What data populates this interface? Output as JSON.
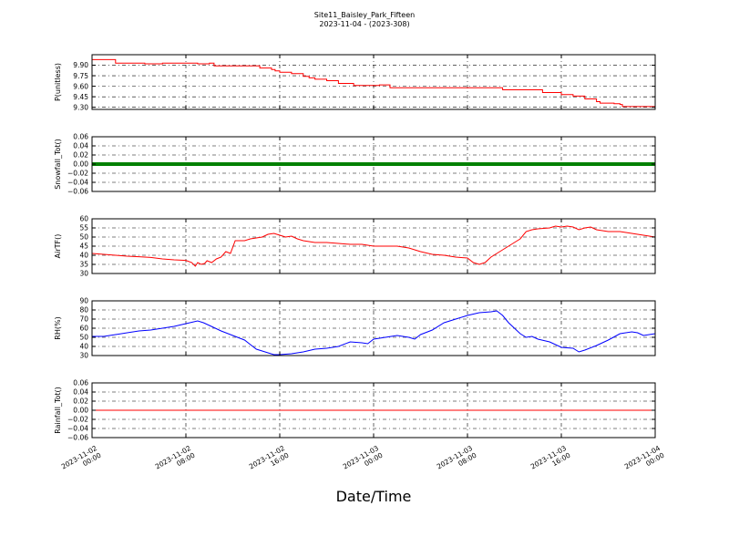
{
  "chart_data": {
    "type": "line",
    "title": "Site11_Baisley_Park_Fifteen",
    "subtitle": "2023-11-04 - (2023-308)",
    "xlabel": "Date/Time",
    "x_ticks": [
      {
        "t": 0,
        "line1": "2023-11-02",
        "line2": "00:00"
      },
      {
        "t": 8,
        "line1": "2023-11-02",
        "line2": "08:00"
      },
      {
        "t": 16,
        "line1": "2023-11-02",
        "line2": "16:00"
      },
      {
        "t": 24,
        "line1": "2023-11-03",
        "line2": "00:00"
      },
      {
        "t": 32,
        "line1": "2023-11-03",
        "line2": "08:00"
      },
      {
        "t": 40,
        "line1": "2023-11-03",
        "line2": "16:00"
      },
      {
        "t": 48,
        "line1": "2023-11-04",
        "line2": "00:00"
      }
    ],
    "xlim": [
      0,
      48
    ],
    "panels": [
      {
        "ylabel": "P(unitless)",
        "ylim": [
          9.27,
          10.05
        ],
        "yticks": [
          "9.30",
          "9.45",
          "9.60",
          "9.75",
          "9.90"
        ],
        "ytick_values": [
          9.3,
          9.45,
          9.6,
          9.75,
          9.9
        ],
        "color": "#ff0000",
        "step": true,
        "points": [
          [
            0,
            9.98
          ],
          [
            1.5,
            9.98
          ],
          [
            2,
            9.93
          ],
          [
            4,
            9.93
          ],
          [
            4.5,
            9.92
          ],
          [
            6,
            9.93
          ],
          [
            8,
            9.93
          ],
          [
            9,
            9.92
          ],
          [
            10,
            9.93
          ],
          [
            10.4,
            9.89
          ],
          [
            14,
            9.89
          ],
          [
            14.3,
            9.86
          ],
          [
            15,
            9.86
          ],
          [
            15.3,
            9.84
          ],
          [
            15.6,
            9.82
          ],
          [
            16,
            9.8
          ],
          [
            17,
            9.78
          ],
          [
            18,
            9.74
          ],
          [
            18.5,
            9.72
          ],
          [
            19,
            9.7
          ],
          [
            20,
            9.68
          ],
          [
            21,
            9.64
          ],
          [
            22,
            9.64
          ],
          [
            22.3,
            9.61
          ],
          [
            24,
            9.61
          ],
          [
            24.5,
            9.62
          ],
          [
            25,
            9.62
          ],
          [
            25.4,
            9.58
          ],
          [
            31,
            9.58
          ],
          [
            32,
            9.58
          ],
          [
            34.5,
            9.58
          ],
          [
            35,
            9.55
          ],
          [
            38,
            9.55
          ],
          [
            38.4,
            9.51
          ],
          [
            39.5,
            9.51
          ],
          [
            40,
            9.48
          ],
          [
            41,
            9.46
          ],
          [
            42,
            9.42
          ],
          [
            43,
            9.38
          ],
          [
            43.3,
            9.36
          ],
          [
            44,
            9.36
          ],
          [
            44.5,
            9.35
          ],
          [
            45,
            9.34
          ],
          [
            45.2,
            9.31
          ],
          [
            48,
            9.32
          ]
        ]
      },
      {
        "ylabel": "Snowfall_Tot()",
        "ylim": [
          -0.06,
          0.06
        ],
        "yticks": [
          "−0.06",
          "−0.04",
          "−0.02",
          "0.00",
          "0.02",
          "0.04",
          "0.06"
        ],
        "ytick_values": [
          -0.06,
          -0.04,
          -0.02,
          0.0,
          0.02,
          0.04,
          0.06
        ],
        "color": "#008000",
        "thick": true,
        "points": [
          [
            0,
            0
          ],
          [
            48,
            0
          ]
        ]
      },
      {
        "ylabel": "AirTF()",
        "ylim": [
          30,
          60
        ],
        "yticks": [
          "30",
          "35",
          "40",
          "45",
          "50",
          "55",
          "60"
        ],
        "ytick_values": [
          30,
          35,
          40,
          45,
          50,
          55,
          60
        ],
        "color": "#ff0000",
        "points": [
          [
            0,
            41
          ],
          [
            1,
            40.5
          ],
          [
            2,
            40
          ],
          [
            3,
            39.5
          ],
          [
            4,
            39.2
          ],
          [
            5,
            38.8
          ],
          [
            6,
            38
          ],
          [
            7,
            37.5
          ],
          [
            8,
            37.2
          ],
          [
            8.5,
            36
          ],
          [
            8.8,
            34
          ],
          [
            9,
            36
          ],
          [
            9.3,
            35
          ],
          [
            9.6,
            35.5
          ],
          [
            9.8,
            37
          ],
          [
            10.2,
            36
          ],
          [
            10.6,
            38
          ],
          [
            11,
            39
          ],
          [
            11.4,
            42
          ],
          [
            11.8,
            41
          ],
          [
            12.2,
            48
          ],
          [
            13,
            48
          ],
          [
            13.5,
            49
          ],
          [
            14,
            49.5
          ],
          [
            14.5,
            50
          ],
          [
            15,
            51.5
          ],
          [
            15.5,
            52
          ],
          [
            16,
            51
          ],
          [
            16.5,
            50
          ],
          [
            17,
            50.5
          ],
          [
            17.5,
            49
          ],
          [
            18,
            48
          ],
          [
            19,
            47
          ],
          [
            20,
            47
          ],
          [
            21,
            46.5
          ],
          [
            22,
            46
          ],
          [
            23,
            46
          ],
          [
            24,
            45
          ],
          [
            25,
            45
          ],
          [
            26,
            45
          ],
          [
            27,
            44
          ],
          [
            28,
            42
          ],
          [
            29,
            40.5
          ],
          [
            30,
            40
          ],
          [
            31,
            39
          ],
          [
            32,
            38.5
          ],
          [
            32.5,
            36
          ],
          [
            33,
            35
          ],
          [
            33.5,
            36
          ],
          [
            34,
            39
          ],
          [
            34.5,
            41
          ],
          [
            35,
            43
          ],
          [
            35.5,
            45
          ],
          [
            36,
            47
          ],
          [
            36.5,
            49
          ],
          [
            37,
            53
          ],
          [
            37.5,
            54
          ],
          [
            38,
            54.5
          ],
          [
            39,
            55
          ],
          [
            39.5,
            56
          ],
          [
            40,
            55.5
          ],
          [
            40.5,
            56
          ],
          [
            41,
            55.5
          ],
          [
            41.5,
            54
          ],
          [
            42,
            55
          ],
          [
            42.5,
            55.5
          ],
          [
            43,
            54
          ],
          [
            43.5,
            53.5
          ],
          [
            44,
            53
          ],
          [
            45,
            53
          ],
          [
            46,
            52
          ],
          [
            47,
            51
          ],
          [
            48,
            50
          ]
        ]
      },
      {
        "ylabel": "RH(%)",
        "ylim": [
          30,
          90
        ],
        "yticks": [
          "30",
          "40",
          "50",
          "60",
          "70",
          "80",
          "90"
        ],
        "ytick_values": [
          30,
          40,
          50,
          60,
          70,
          80,
          90
        ],
        "color": "#0000ff",
        "points": [
          [
            0,
            51
          ],
          [
            1,
            51
          ],
          [
            2,
            53
          ],
          [
            3,
            55
          ],
          [
            4,
            57
          ],
          [
            5,
            58
          ],
          [
            6,
            60
          ],
          [
            7,
            62
          ],
          [
            8,
            65
          ],
          [
            9,
            68
          ],
          [
            9.5,
            66
          ],
          [
            10,
            63
          ],
          [
            11,
            57
          ],
          [
            12,
            52
          ],
          [
            13,
            47
          ],
          [
            13.5,
            42
          ],
          [
            14,
            37
          ],
          [
            14.5,
            35
          ],
          [
            15,
            33
          ],
          [
            15.5,
            31
          ],
          [
            16,
            31
          ],
          [
            17,
            32
          ],
          [
            18,
            34
          ],
          [
            19,
            37
          ],
          [
            20,
            38
          ],
          [
            21,
            40
          ],
          [
            22,
            45
          ],
          [
            23,
            44
          ],
          [
            23.5,
            43
          ],
          [
            24,
            48
          ],
          [
            25,
            50
          ],
          [
            26,
            52
          ],
          [
            27,
            50
          ],
          [
            27.5,
            48
          ],
          [
            28,
            53
          ],
          [
            29,
            58
          ],
          [
            30,
            66
          ],
          [
            31,
            70
          ],
          [
            32,
            74
          ],
          [
            33,
            77
          ],
          [
            34,
            78
          ],
          [
            34.5,
            79
          ],
          [
            35,
            74
          ],
          [
            35.5,
            66
          ],
          [
            36,
            60
          ],
          [
            36.5,
            54
          ],
          [
            37,
            50
          ],
          [
            37.5,
            51
          ],
          [
            38,
            48
          ],
          [
            39,
            45
          ],
          [
            39.5,
            42
          ],
          [
            40,
            39
          ],
          [
            41,
            38
          ],
          [
            41.5,
            34
          ],
          [
            42,
            36
          ],
          [
            43,
            41
          ],
          [
            44,
            47
          ],
          [
            45,
            54
          ],
          [
            46,
            56
          ],
          [
            46.5,
            55
          ],
          [
            47,
            52
          ],
          [
            48,
            54
          ]
        ]
      },
      {
        "ylabel": "Rainfall_Tot()",
        "ylim": [
          -0.06,
          0.06
        ],
        "yticks": [
          "−0.06",
          "−0.04",
          "−0.02",
          "0.00",
          "0.02",
          "0.04",
          "0.06"
        ],
        "ytick_values": [
          -0.06,
          -0.04,
          -0.02,
          0.0,
          0.02,
          0.04,
          0.06
        ],
        "color": "#ff0000",
        "points": [
          [
            0,
            0
          ],
          [
            48,
            0
          ]
        ]
      }
    ]
  }
}
